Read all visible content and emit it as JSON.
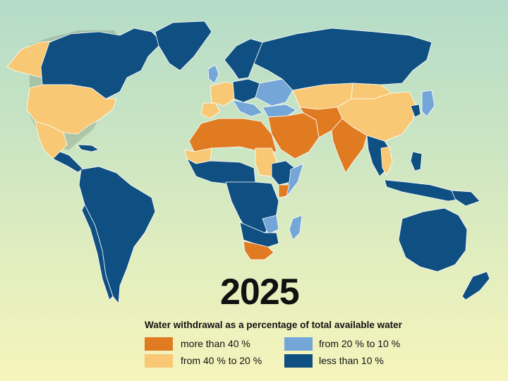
{
  "year": "2025",
  "legend": {
    "title": "Water withdrawal as a percentage of total available water",
    "items": [
      {
        "key": "gt40",
        "label": "more than 40 %",
        "color": "#e07b22"
      },
      {
        "key": "20_10",
        "label": "from 20 % to 10 %",
        "color": "#74a6d8"
      },
      {
        "key": "40_20",
        "label": "from 40 % to 20 %",
        "color": "#f8c874"
      },
      {
        "key": "lt10",
        "label": "less than 10 %",
        "color": "#0f4f82"
      }
    ]
  }
}
